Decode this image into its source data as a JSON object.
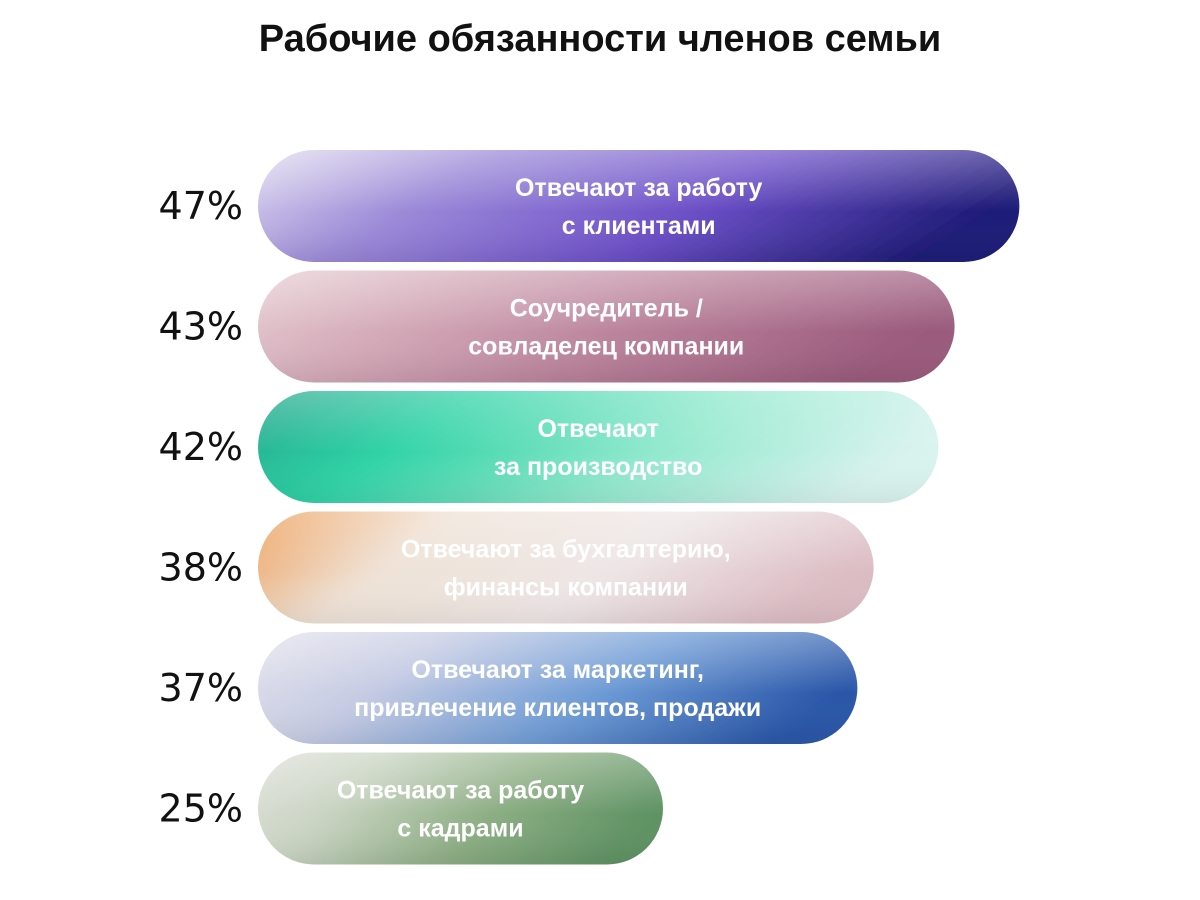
{
  "chart_data": {
    "type": "bar",
    "orientation": "horizontal",
    "title": "Рабочие обязанности членов семьи",
    "xlabel": "",
    "ylabel": "",
    "unit": "%",
    "grid": false,
    "bars": [
      {
        "value": 47,
        "value_label": "47%",
        "label_lines": [
          "Отвечают за работу",
          "с клиентами"
        ],
        "colors": [
          "#efeef4",
          "#9c8ad8",
          "#6c4fc8",
          "#1f1c78"
        ]
      },
      {
        "value": 43,
        "value_label": "43%",
        "label_lines": [
          "Соучредитель /",
          "совладелец компании"
        ],
        "colors": [
          "#ecd6db",
          "#d3a9b7",
          "#b77e98",
          "#9a5a7c"
        ]
      },
      {
        "value": 42,
        "value_label": "42%",
        "label_lines": [
          "Отвечают",
          "за производство"
        ],
        "colors": [
          "#1f9c86",
          "#2fd3a6",
          "#8fe8cb",
          "#d9f3ef"
        ]
      },
      {
        "value": 38,
        "value_label": "38%",
        "label_lines": [
          "Отвечают за бухгалтерию,",
          "финансы компании"
        ],
        "colors": [
          "#ec8a35",
          "#efe2d6",
          "#ede6e6",
          "#dcbcc3"
        ]
      },
      {
        "value": 37,
        "value_label": "37%",
        "label_lines": [
          "Отвечают за маркетинг,",
          "привлечение клиентов, продажи"
        ],
        "colors": [
          "#eae8ee",
          "#c6cbe3",
          "#6d9bd6",
          "#2a56a8"
        ]
      },
      {
        "value": 25,
        "value_label": "25%",
        "label_lines": [
          "Отвечают за работу",
          "с кадрами"
        ],
        "colors": [
          "#e4e4e1",
          "#c9d4c2",
          "#8dae84",
          "#5e9263"
        ]
      }
    ]
  }
}
